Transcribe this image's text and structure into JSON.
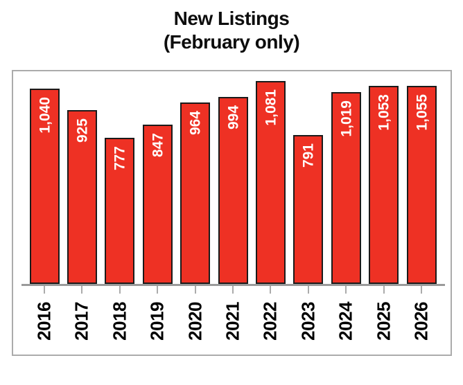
{
  "title": {
    "line1": "New Listings",
    "line2": "(February only)"
  },
  "chart_data": {
    "type": "bar",
    "title": "New Listings (February only)",
    "categories": [
      "2016",
      "2017",
      "2018",
      "2019",
      "2020",
      "2021",
      "2022",
      "2023",
      "2024",
      "2025",
      "2026"
    ],
    "values": [
      1040,
      925,
      777,
      847,
      964,
      994,
      1081,
      791,
      1019,
      1053,
      1055
    ],
    "value_labels": [
      "1,040",
      "925",
      "777",
      "847",
      "964",
      "994",
      "1,081",
      "791",
      "1,019",
      "1,053",
      "1,055"
    ],
    "xlabel": "",
    "ylabel": "",
    "ylim": [
      0,
      1135
    ],
    "grid": false,
    "legend": false,
    "bar_color": "#EE3124",
    "bar_border_color": "#1A1A1A",
    "value_label_color": "#FFFFFF",
    "axis_line_color": "#9A9A9A",
    "tick_color": "#ABABAB",
    "plot_border_color": "#ABABAB",
    "text_color": "#000000"
  }
}
